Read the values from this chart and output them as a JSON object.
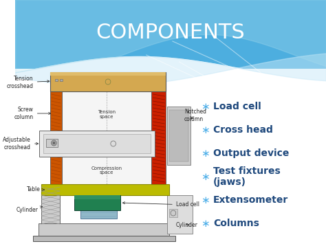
{
  "title": "COMPONENTS",
  "title_color": "#FFFFFF",
  "title_fontsize": 22,
  "bullet_items": [
    "Load cell",
    "Cross head",
    "Output device",
    "Test fixtures\n(jaws)",
    "Extensometer",
    "Columns"
  ],
  "bullet_color": "#1F497D",
  "bullet_fontsize": 10,
  "bullet_star_color": "#4AADE8",
  "machine_colors": {
    "top_beam": "#D4A850",
    "left_col": "#CC5500",
    "right_col": "#CC2000",
    "inner_bg": "#F0F0F0",
    "crosshead": "#E8E8E8",
    "table": "#BBBB00",
    "load_cell_green": "#208050",
    "cylinder_blue": "#90B8C8",
    "hatch_gray": "#BBBBBB",
    "base": "#CCCCCC",
    "notch_gray": "#CCCCCC",
    "right_box": "#DDDDDD"
  }
}
